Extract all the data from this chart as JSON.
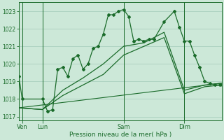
{
  "title": "Pression niveau de la mer( hPa )",
  "bg_color": "#cce8d8",
  "grid_color": "#aacfbe",
  "line_color": "#1a6b2a",
  "x_tick_labels": [
    "Ven",
    "Lun",
    "Sam",
    "Dim"
  ],
  "x_tick_positions": [
    2,
    14,
    62,
    98
  ],
  "xlim": [
    0,
    120
  ],
  "ylim": [
    1016.8,
    1023.5
  ],
  "yticks": [
    1017,
    1018,
    1019,
    1020,
    1021,
    1022,
    1023
  ],
  "day_lines": [
    2,
    14,
    62,
    98
  ],
  "series1": {
    "x": [
      0,
      2,
      14,
      17,
      20,
      23,
      26,
      29,
      32,
      35,
      38,
      41,
      44,
      47,
      50,
      53,
      56,
      59,
      62,
      65,
      68,
      71,
      74,
      77,
      80,
      86,
      92,
      95,
      98,
      101,
      104,
      107,
      110,
      113,
      116,
      119,
      120
    ],
    "y": [
      1019.3,
      1018.0,
      1018.0,
      1017.3,
      1017.4,
      1019.7,
      1019.8,
      1019.3,
      1020.3,
      1020.5,
      1019.7,
      1020.0,
      1020.9,
      1021.0,
      1021.7,
      1022.8,
      1022.8,
      1023.0,
      1023.1,
      1022.7,
      1021.3,
      1021.4,
      1021.3,
      1021.4,
      1021.4,
      1022.4,
      1023.0,
      1022.1,
      1021.3,
      1021.3,
      1020.5,
      1019.8,
      1019.0,
      1018.9,
      1018.8,
      1018.8,
      1018.8
    ]
  },
  "series2": {
    "x": [
      0,
      14,
      26,
      38,
      50,
      62,
      74,
      86,
      98,
      110,
      120
    ],
    "y": [
      1017.5,
      1017.4,
      1018.5,
      1019.2,
      1020.0,
      1021.0,
      1021.2,
      1021.8,
      1018.5,
      1018.8,
      1018.9
    ]
  },
  "series3": {
    "x": [
      0,
      14,
      26,
      38,
      50,
      62,
      74,
      86,
      98,
      110,
      120
    ],
    "y": [
      1017.5,
      1017.4,
      1018.2,
      1018.8,
      1019.4,
      1020.5,
      1021.0,
      1021.5,
      1018.3,
      1018.7,
      1018.8
    ]
  },
  "series4": {
    "x": [
      0,
      120
    ],
    "y": [
      1017.5,
      1018.9
    ]
  }
}
